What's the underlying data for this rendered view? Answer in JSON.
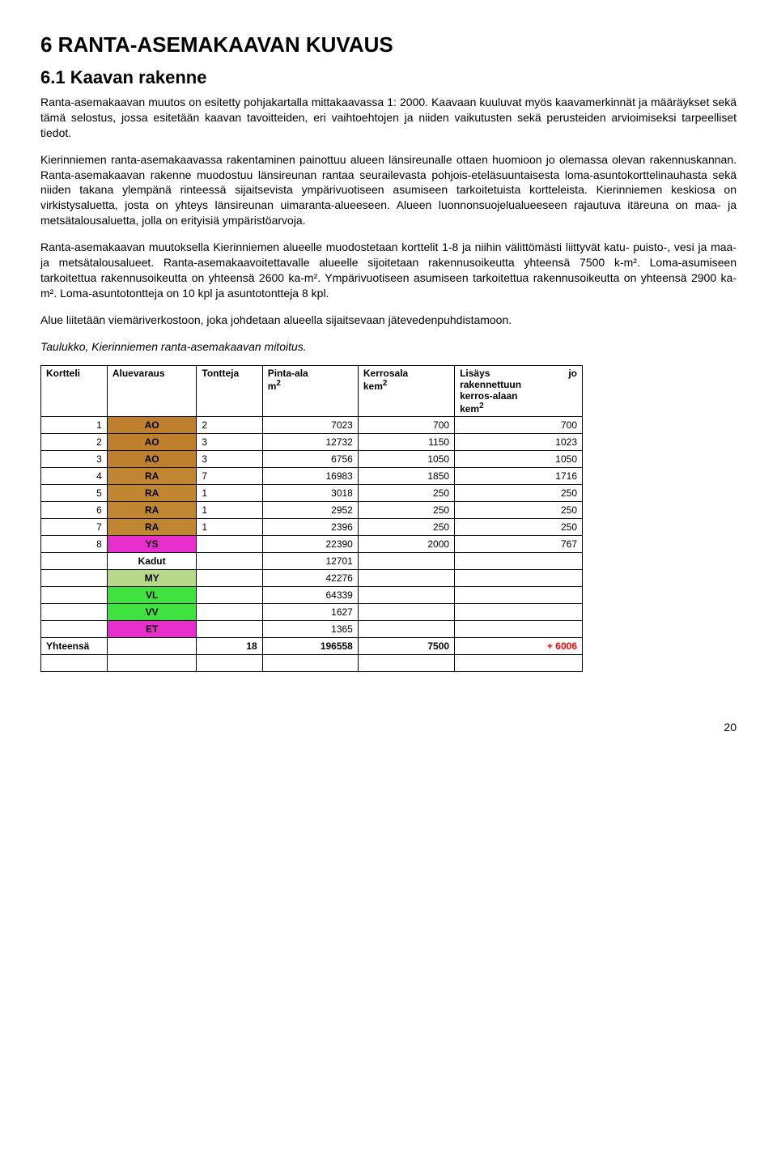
{
  "heading1": "6 RANTA-ASEMAKAAVAN KUVAUS",
  "heading2": "6.1 Kaavan rakenne",
  "para1": "Ranta-asemakaavan muutos on esitetty pohjakartalla mittakaavassa 1: 2000. Kaavaan kuuluvat myös kaavamerkinnät ja määräykset sekä tämä selostus, jossa esitetään kaavan tavoitteiden, eri vaihtoehtojen ja niiden vaikutusten sekä perusteiden arvioimiseksi tarpeelliset tiedot.",
  "para2": "Kierinniemen ranta-asemakaavassa rakentaminen painottuu alueen länsireunalle ottaen huomioon jo olemassa olevan rakennuskannan. Ranta-asemakaavan rakenne muodostuu länsireunan rantaa seurailevasta pohjois-eteläsuuntaisesta loma-asuntokorttelinauhasta sekä niiden takana ylempänä rinteessä sijaitsevista ympärivuotiseen asumiseen tarkoitetuista kortteleista. Kierinniemen keskiosa on virkistysaluetta, josta on yhteys länsireunan uimaranta-alueeseen. Alueen luonnonsuojelualueeseen rajautuva itäreuna on maa- ja metsätalousaluetta, jolla on erityisiä ympäristöarvoja.",
  "para3": "Ranta-asemakaavan muutoksella Kierinniemen alueelle muodostetaan korttelit 1-8 ja niihin välittömästi liittyvät katu- puisto-, vesi ja maa- ja metsätalousalueet. Ranta-asemakaavoitettavalle alueelle sijoitetaan rakennusoikeutta yhteensä 7500 k-m². Loma-asumiseen tarkoitettua rakennusoikeutta on yhteensä 2600 ka-m². Ympärivuotiseen asumiseen tarkoitettua rakennusoikeutta on yhteensä 2900 ka-m². Loma-asuntotontteja on 10 kpl ja asuntotontteja 8 kpl.",
  "para4": "Alue liitetään viemäriverkostoon, joka johdetaan alueella sijaitsevaan jätevedenpuhdistamoon.",
  "table_caption": "Taulukko, Kierinniemen ranta-asemakaavan mitoitus.",
  "table": {
    "headers": [
      "Kortteli",
      "Aluevaraus",
      "Tontteja",
      "Pinta-ala m²",
      "Kerrosala kem²",
      "Lisäys jo rakennettuun kerros-alaan kem²"
    ],
    "h_kortteli": "Kortteli",
    "h_aluevaraus": "Aluevaraus",
    "h_tontteja": "Tontteja",
    "h_pintaala_1": "Pinta-ala",
    "h_pintaala_2": "m",
    "h_pintaala_sup": "2",
    "h_kerrosala_1": "Kerrosala",
    "h_kerrosala_2": "kem",
    "h_kerrosala_sup": "2",
    "h_lisays_1": "Lisäys",
    "h_lisays_jo": "jo",
    "h_lisays_2": "rakennettuun",
    "h_lisays_3": "kerros-alaan",
    "h_lisays_4": "kem",
    "h_lisays_sup": "2",
    "colors": {
      "AO": "#bf802d",
      "RA": "#c08632",
      "YS": "#e82ecd",
      "MY": "#b8d98a",
      "VL": "#3fe23f",
      "VV": "#3fe23f",
      "ET": "#e82ecd"
    },
    "rows": [
      {
        "k": "1",
        "a": "AO",
        "t": "2",
        "p": "7023",
        "ker": "700",
        "l": "700",
        "c": "#bf802d"
      },
      {
        "k": "2",
        "a": "AO",
        "t": "3",
        "p": "12732",
        "ker": "1150",
        "l": "1023",
        "c": "#bf802d"
      },
      {
        "k": "3",
        "a": "AO",
        "t": "3",
        "p": "6756",
        "ker": "1050",
        "l": "1050",
        "c": "#bf802d"
      },
      {
        "k": "4",
        "a": "RA",
        "t": "7",
        "p": "16983",
        "ker": "1850",
        "l": "1716",
        "c": "#c08632"
      },
      {
        "k": "5",
        "a": "RA",
        "t": "1",
        "p": "3018",
        "ker": "250",
        "l": "250",
        "c": "#c08632"
      },
      {
        "k": "6",
        "a": "RA",
        "t": "1",
        "p": "2952",
        "ker": "250",
        "l": "250",
        "c": "#c08632"
      },
      {
        "k": "7",
        "a": "RA",
        "t": "1",
        "p": "2396",
        "ker": "250",
        "l": "250",
        "c": "#c08632"
      },
      {
        "k": "8",
        "a": "YS",
        "t": "",
        "p": "22390",
        "ker": "2000",
        "l": "767",
        "c": "#e82ecd"
      },
      {
        "k": "",
        "a": "Kadut",
        "t": "",
        "p": "12701",
        "ker": "",
        "l": "",
        "c": ""
      },
      {
        "k": "",
        "a": "MY",
        "t": "",
        "p": "42276",
        "ker": "",
        "l": "",
        "c": "#b8d98a"
      },
      {
        "k": "",
        "a": "VL",
        "t": "",
        "p": "64339",
        "ker": "",
        "l": "",
        "c": "#3fe23f"
      },
      {
        "k": "",
        "a": "VV",
        "t": "",
        "p": "1627",
        "ker": "",
        "l": "",
        "c": "#3fe23f"
      },
      {
        "k": "",
        "a": "ET",
        "t": "",
        "p": "1365",
        "ker": "",
        "l": "",
        "c": "#e82ecd"
      }
    ],
    "total": {
      "label": "Yhteensä",
      "t": "18",
      "p": "196558",
      "ker": "7500",
      "l": "+ 6006",
      "l_color": "#ff0000"
    }
  },
  "page_number": "20"
}
